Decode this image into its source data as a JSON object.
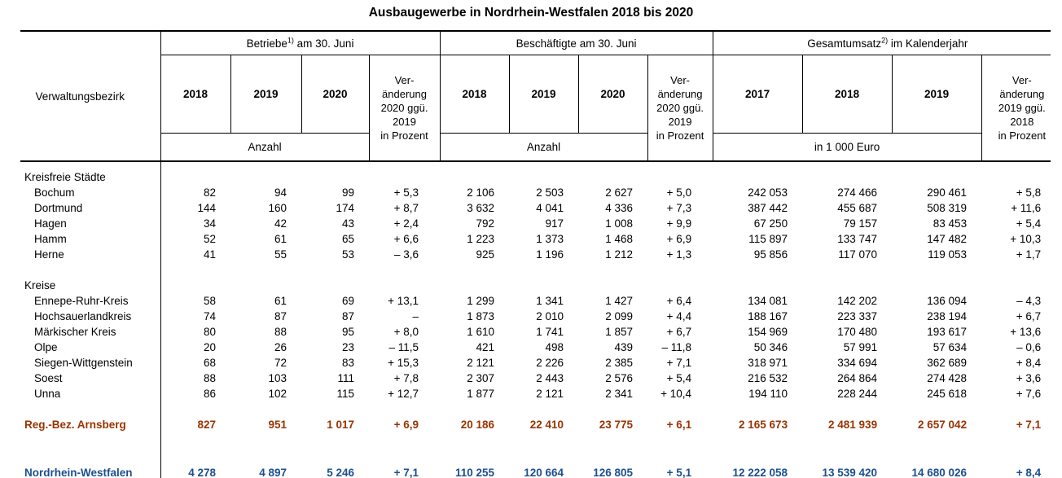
{
  "title": "Ausbaugewerbe in Nordrhein-Westfalen 2018 bis 2020",
  "colors": {
    "arnsberg": "#993300",
    "nrw": "#1C4F8F",
    "border": "#000000"
  },
  "header": {
    "row_label": "Verwaltungsbezirk",
    "groups": [
      {
        "title_main": "Betriebe",
        "title_sup": "1)",
        "title_rest": " am 30. Juni",
        "years": [
          "2018",
          "2019",
          "2020"
        ],
        "change": "Ver-\nänderung\n2020 ggü.\n2019\nin Prozent",
        "unit": "Anzahl"
      },
      {
        "title_main": "Beschäftigte am 30. Juni",
        "title_sup": "",
        "title_rest": "",
        "years": [
          "2018",
          "2019",
          "2020"
        ],
        "change": "Ver-\nänderung\n2020 ggü.\n2019\nin Prozent",
        "unit": "Anzahl"
      },
      {
        "title_main": "Gesamtumsatz",
        "title_sup": "2)",
        "title_rest": " im Kalenderjahr",
        "years": [
          "2017",
          "2018",
          "2019"
        ],
        "change": "Ver-\nänderung\n2019 ggü.\n2018\nin Prozent",
        "unit": "in 1 000 Euro"
      }
    ]
  },
  "rows": [
    {
      "type": "lead"
    },
    {
      "type": "section",
      "name": "Kreisfreie Städte"
    },
    {
      "type": "data",
      "name": "Bochum",
      "values": [
        "82",
        "94",
        "99",
        "+ 5,3",
        "2 106",
        "2 503",
        "2 627",
        "+ 5,0",
        "242 053",
        "274 466",
        "290 461",
        "+ 5,8"
      ]
    },
    {
      "type": "data",
      "name": "Dortmund",
      "values": [
        "144",
        "160",
        "174",
        "+ 8,7",
        "3 632",
        "4 041",
        "4 336",
        "+ 7,3",
        "387 442",
        "455 687",
        "508 319",
        "+ 11,6"
      ]
    },
    {
      "type": "data",
      "name": "Hagen",
      "values": [
        "34",
        "42",
        "43",
        "+ 2,4",
        "792",
        "917",
        "1 008",
        "+ 9,9",
        "67 250",
        "79 157",
        "83 453",
        "+ 5,4"
      ]
    },
    {
      "type": "data",
      "name": "Hamm",
      "values": [
        "52",
        "61",
        "65",
        "+ 6,6",
        "1 223",
        "1 373",
        "1 468",
        "+ 6,9",
        "115 897",
        "133 747",
        "147 482",
        "+ 10,3"
      ]
    },
    {
      "type": "data",
      "name": "Herne",
      "values": [
        "41",
        "55",
        "53",
        "– 3,6",
        "925",
        "1 196",
        "1 212",
        "+ 1,3",
        "95 856",
        "117 070",
        "119 053",
        "+ 1,7"
      ]
    },
    {
      "type": "spacer"
    },
    {
      "type": "section",
      "name": "Kreise"
    },
    {
      "type": "data",
      "name": "Ennepe-Ruhr-Kreis",
      "values": [
        "58",
        "61",
        "69",
        "+ 13,1",
        "1 299",
        "1 341",
        "1 427",
        "+ 6,4",
        "134 081",
        "142 202",
        "136 094",
        "– 4,3"
      ]
    },
    {
      "type": "data",
      "name": "Hochsauerlandkreis",
      "values": [
        "74",
        "87",
        "87",
        "–",
        "1 873",
        "2 010",
        "2 099",
        "+ 4,4",
        "188 167",
        "223 337",
        "238 194",
        "+ 6,7"
      ]
    },
    {
      "type": "data",
      "name": "Märkischer Kreis",
      "values": [
        "80",
        "88",
        "95",
        "+ 8,0",
        "1 610",
        "1 741",
        "1 857",
        "+ 6,7",
        "154 969",
        "170 480",
        "193 617",
        "+ 13,6"
      ]
    },
    {
      "type": "data",
      "name": "Olpe",
      "values": [
        "20",
        "26",
        "23",
        "– 11,5",
        "421",
        "498",
        "439",
        "– 11,8",
        "50 346",
        "57 991",
        "57 634",
        "– 0,6"
      ]
    },
    {
      "type": "data",
      "name": "Siegen-Wittgenstein",
      "values": [
        "68",
        "72",
        "83",
        "+ 15,3",
        "2 121",
        "2 226",
        "2 385",
        "+ 7,1",
        "318 971",
        "334 694",
        "362 689",
        "+ 8,4"
      ]
    },
    {
      "type": "data",
      "name": "Soest",
      "values": [
        "88",
        "103",
        "111",
        "+ 7,8",
        "2 307",
        "2 443",
        "2 576",
        "+ 5,4",
        "216 532",
        "264 864",
        "274 428",
        "+ 3,6"
      ]
    },
    {
      "type": "data",
      "name": "Unna",
      "values": [
        "86",
        "102",
        "115",
        "+ 12,7",
        "1 877",
        "2 121",
        "2 341",
        "+ 10,4",
        "194 110",
        "228 244",
        "245 618",
        "+ 7,6"
      ]
    },
    {
      "type": "spacer"
    },
    {
      "type": "summary",
      "colorKey": "arnsberg",
      "name": "Reg.-Bez. Arnsberg",
      "values": [
        "827",
        "951",
        "1 017",
        "+ 6,9",
        "20 186",
        "22 410",
        "23 775",
        "+ 6,1",
        "2 165 673",
        "2 481 939",
        "2 657 042",
        "+ 7,1"
      ]
    },
    {
      "type": "bigspacer"
    },
    {
      "type": "summary",
      "colorKey": "nrw",
      "name": "Nordrhein-Westfalen",
      "values": [
        "4 278",
        "4 897",
        "5 246",
        "+ 7,1",
        "110 255",
        "120 664",
        "126 805",
        "+ 5,1",
        "12 222 058",
        "13 539 420",
        "14 680 026",
        "+ 8,4"
      ]
    },
    {
      "type": "fill"
    }
  ]
}
